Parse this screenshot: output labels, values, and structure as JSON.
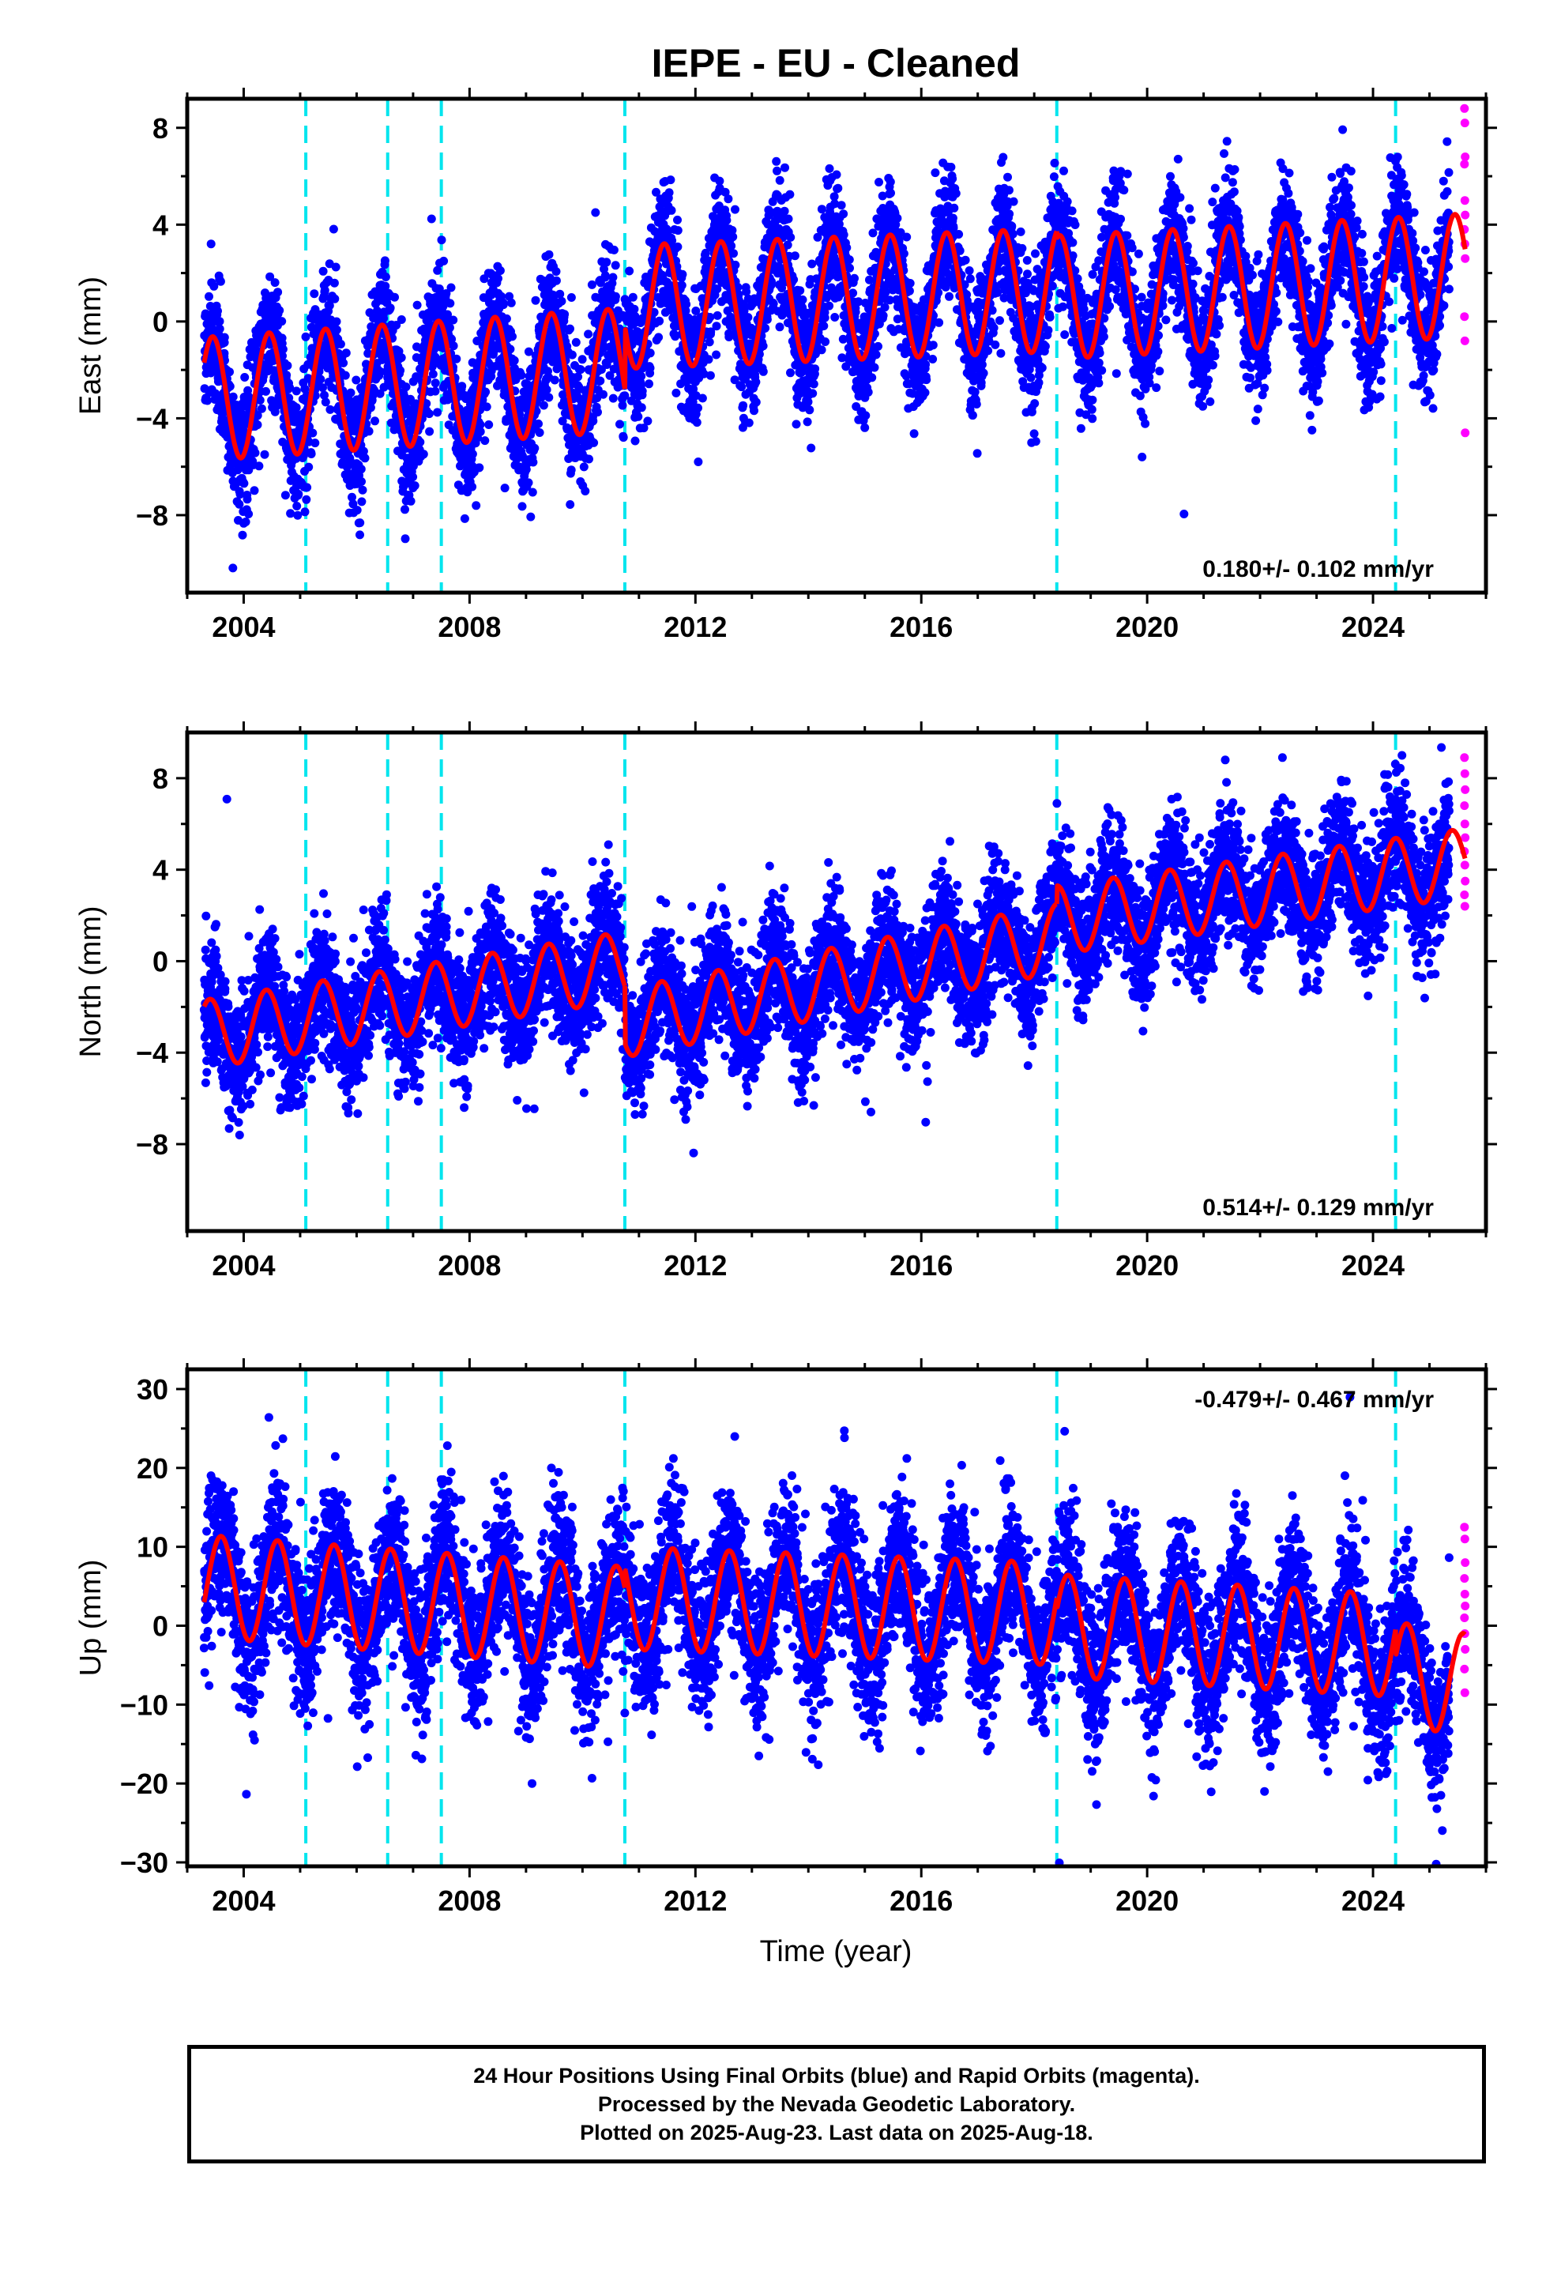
{
  "chart_data": {
    "type": "scatter",
    "title": "IEPE  - EU - Cleaned",
    "xlabel": "Time (year)",
    "xlim": [
      2003.0,
      2026.0
    ],
    "x_ticks": [
      2004,
      2008,
      2012,
      2016,
      2020,
      2024
    ],
    "x_tick_labels": [
      "2004",
      "2008",
      "2012",
      "2016",
      "2020",
      "2024"
    ],
    "colors": {
      "final_orbits": "#0000ff",
      "rapid_orbits": "#ff00ff",
      "model_fit": "#ff0000",
      "equipment_change": "#00e5ee"
    },
    "equipment_changes": [
      2005.1,
      2006.55,
      2007.5,
      2010.75,
      2018.4,
      2024.4
    ],
    "last_final_epoch": 2025.35,
    "last_epoch": 2025.63,
    "panels": [
      {
        "key": "east",
        "ylabel": "East (mm)",
        "ylim": [
          -11.2,
          9.2
        ],
        "y_ticks": [
          -8,
          -4,
          0,
          4,
          8
        ],
        "y_tick_labels": [
          "−8",
          "−4",
          "0",
          "4",
          "8"
        ],
        "rate_label": "0.180+/- 0.102 mm/yr",
        "rate_position": "bottom-right",
        "model": {
          "amplitude": 2.55,
          "phase_peak": 0.45,
          "segments": [
            {
              "start": 2003.3,
              "end": 2010.75,
              "level_start": -3.2,
              "level_end": -2.0
            },
            {
              "start": 2010.75,
              "end": 2018.4,
              "level_start": 0.6,
              "level_end": 1.3
            },
            {
              "start": 2018.4,
              "end": 2025.63,
              "level_start": 1.0,
              "level_end": 1.9
            }
          ]
        },
        "scatter_sigma": 1.3,
        "rapid_values": [
          8.8,
          8.2,
          6.8,
          6.5,
          5.0,
          4.4,
          3.8,
          3.2,
          2.6,
          0.2,
          -0.8,
          -4.6
        ]
      },
      {
        "key": "north",
        "ylabel": "North (mm)",
        "ylim": [
          -11.8,
          10.0
        ],
        "y_ticks": [
          -8,
          -4,
          0,
          4,
          8
        ],
        "y_tick_labels": [
          "−8",
          "−4",
          "0",
          "4",
          "8"
        ],
        "rate_label": "0.514+/- 0.129 mm/yr",
        "rate_position": "bottom-right",
        "model": {
          "amplitude": 1.5,
          "phase_peak": 0.4,
          "segments": [
            {
              "start": 2003.3,
              "end": 2010.75,
              "level_start": -3.2,
              "level_end": -0.2
            },
            {
              "start": 2010.75,
              "end": 2018.4,
              "level_start": -2.7,
              "level_end": 1.0
            },
            {
              "start": 2018.4,
              "end": 2025.63,
              "level_start": 1.8,
              "level_end": 4.3
            }
          ]
        },
        "scatter_sigma": 1.4,
        "rapid_values": [
          8.9,
          8.2,
          7.5,
          6.8,
          6.0,
          5.4,
          4.8,
          4.2,
          3.5,
          2.9,
          2.4
        ]
      },
      {
        "key": "up",
        "ylabel": "Up (mm)",
        "ylim": [
          -30.5,
          32.5
        ],
        "y_ticks": [
          -30,
          -20,
          -10,
          0,
          10,
          20,
          30
        ],
        "y_tick_labels": [
          "−30",
          "−20",
          "−10",
          "0",
          "10",
          "20",
          "30"
        ],
        "rate_label": "-0.479+/- 0.467 mm/yr",
        "rate_position": "top-right",
        "model": {
          "amplitude": 6.5,
          "phase_peak": 0.6,
          "segments": [
            {
              "start": 2003.3,
              "end": 2010.75,
              "level_start": 5.0,
              "level_end": 1.0
            },
            {
              "start": 2010.75,
              "end": 2018.4,
              "level_start": 3.5,
              "level_end": 1.5
            },
            {
              "start": 2018.4,
              "end": 2024.4,
              "level_start": 0.0,
              "level_end": -2.5
            },
            {
              "start": 2024.4,
              "end": 2025.63,
              "level_start": -6.0,
              "level_end": -7.5
            }
          ]
        },
        "scatter_sigma": 4.8,
        "rapid_values": [
          12.5,
          11.0,
          8.0,
          6.0,
          4.0,
          2.5,
          1.0,
          -1.0,
          -3.0,
          -5.5,
          -8.5
        ]
      }
    ],
    "caption": [
      "24 Hour Positions Using Final Orbits (blue) and Rapid Orbits (magenta).",
      "Processed by the Nevada Geodetic Laboratory.",
      "Plotted on 2025-Aug-23. Last data on 2025-Aug-18."
    ]
  }
}
